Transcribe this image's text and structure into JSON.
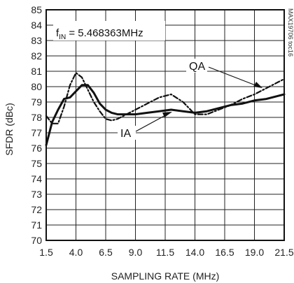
{
  "chart_data": {
    "type": "line",
    "title": "",
    "xlabel": "SAMPLING RATE (MHz)",
    "ylabel": "SFDR (dBc)",
    "xlim": [
      1.5,
      21.5
    ],
    "ylim": [
      70,
      85
    ],
    "x_ticks": [
      "1.5",
      "4.0",
      "6.5",
      "9.0",
      "11.5",
      "14.0",
      "16.5",
      "19.0",
      "21.5"
    ],
    "x_tick_values": [
      1.5,
      4.0,
      6.5,
      9.0,
      11.5,
      14.0,
      16.5,
      19.0,
      21.5
    ],
    "y_ticks": [
      "70",
      "71",
      "72",
      "73",
      "74",
      "75",
      "76",
      "77",
      "78",
      "79",
      "80",
      "81",
      "82",
      "83",
      "84",
      "85"
    ],
    "y_tick_values": [
      70,
      71,
      72,
      73,
      74,
      75,
      76,
      77,
      78,
      79,
      80,
      81,
      82,
      83,
      84,
      85
    ],
    "grid": true,
    "annotation": {
      "f_prefix": "f",
      "f_sub": "IN",
      "f_value": " = 5.468363MHz"
    },
    "watermark": "MAX19706 toc16",
    "series": [
      {
        "name": "IA",
        "style": "solid",
        "x": [
          1.5,
          2.0,
          2.5,
          3.0,
          3.5,
          4.0,
          4.5,
          5.0,
          5.5,
          6.0,
          6.5,
          7.0,
          7.5,
          8.0,
          8.5,
          9.0,
          10.0,
          11.0,
          12.0,
          13.0,
          14.0,
          15.0,
          16.0,
          17.0,
          18.0,
          19.0,
          20.0,
          21.0,
          21.5
        ],
        "y": [
          76.2,
          77.7,
          78.5,
          79.2,
          79.3,
          79.7,
          80.1,
          80.1,
          79.6,
          78.9,
          78.5,
          78.3,
          78.2,
          78.2,
          78.2,
          78.2,
          78.3,
          78.4,
          78.5,
          78.4,
          78.3,
          78.4,
          78.6,
          78.8,
          78.9,
          79.1,
          79.2,
          79.4,
          79.5
        ]
      },
      {
        "name": "QA",
        "style": "dash-dot",
        "x": [
          1.5,
          2.0,
          2.5,
          3.0,
          3.5,
          4.0,
          4.5,
          5.0,
          5.5,
          6.0,
          6.5,
          7.0,
          7.5,
          8.0,
          8.5,
          9.0,
          10.0,
          11.0,
          12.0,
          13.0,
          14.0,
          15.0,
          16.0,
          17.0,
          18.0,
          19.0,
          20.0,
          21.0,
          21.5
        ],
        "y": [
          78.1,
          77.6,
          77.6,
          78.7,
          80.1,
          80.9,
          80.6,
          79.8,
          79.0,
          78.4,
          77.9,
          77.8,
          77.9,
          78.1,
          78.3,
          78.5,
          78.9,
          79.3,
          79.5,
          79.0,
          78.2,
          78.2,
          78.5,
          78.8,
          79.2,
          79.5,
          79.9,
          80.3,
          80.5
        ]
      }
    ],
    "labels": {
      "ia": "IA",
      "qa": "QA"
    },
    "colors": {
      "line": "#111111",
      "grid": "#222222"
    }
  }
}
